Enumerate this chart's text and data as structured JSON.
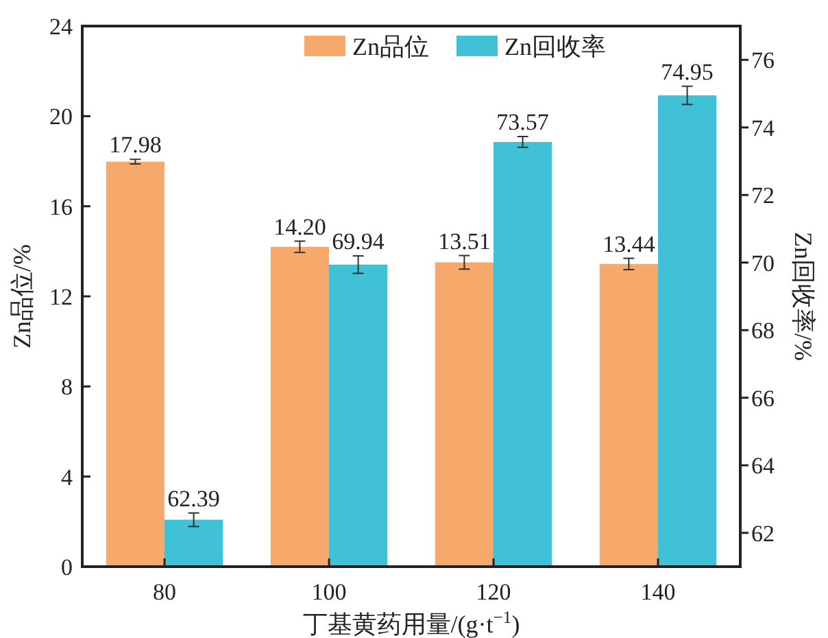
{
  "chart_data": {
    "type": "bar",
    "xlabel": "丁基黄药用量/(g·t$^{−1}$)",
    "ylabel": "Zn品位/%",
    "y2label": "Zn回收率/%",
    "categories": [
      "80",
      "100",
      "120",
      "140"
    ],
    "ylim": [
      0,
      24
    ],
    "yticks": [
      0,
      4,
      8,
      12,
      16,
      20,
      24
    ],
    "y2lim": [
      61,
      77
    ],
    "y2ticks": [
      62,
      64,
      66,
      68,
      70,
      72,
      74,
      76
    ],
    "legend": "top",
    "grid": false,
    "series": [
      {
        "name": "Zn品位",
        "color": "#f6a96a",
        "values": [
          17.98,
          14.2,
          13.51,
          13.44
        ],
        "errors": [
          0.1,
          0.25,
          0.3,
          0.25
        ],
        "value_labels": [
          "17.98",
          "14.20",
          "13.51",
          "13.44"
        ]
      },
      {
        "name": "Zn回收率",
        "color": "#41c1d6",
        "axis": "y2",
        "values": [
          62.39,
          69.94,
          73.57,
          74.95
        ],
        "errors": [
          0.2,
          0.26,
          0.16,
          0.27
        ],
        "value_labels": [
          "62.39",
          "69.94",
          "73.57",
          "74.95"
        ]
      }
    ]
  }
}
